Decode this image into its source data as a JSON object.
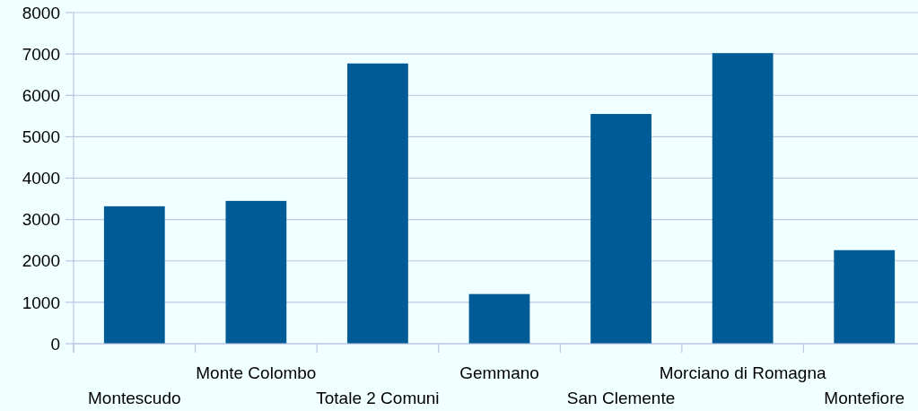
{
  "chart_data": {
    "type": "bar",
    "categories": [
      "Montescudo",
      "Monte Colombo",
      "Totale 2 Comuni",
      "Gemmano",
      "San Clemente",
      "Morciano di Romagna",
      "Montefiore"
    ],
    "values": [
      3320,
      3450,
      6770,
      1200,
      5550,
      7020,
      2260
    ],
    "color": "#005b96",
    "ylim": [
      0,
      8000
    ],
    "yticks": [
      0,
      1000,
      2000,
      3000,
      4000,
      5000,
      6000,
      7000,
      8000
    ],
    "grid": "y"
  }
}
